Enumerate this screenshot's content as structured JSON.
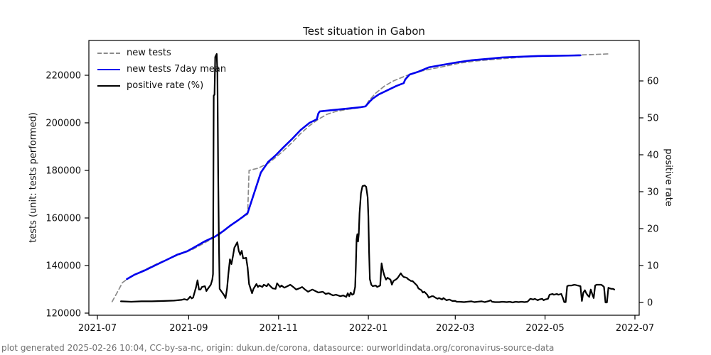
{
  "title": "Test situation in Gabon",
  "footer": "plot generated 2025-02-26 10:04, CC-by-sa-nc, origin: dukun.de/corona, datasource: ourworldindata.org/coronavirus-source-data",
  "legend": [
    {
      "label": "new tests",
      "color": "#8a8a8a",
      "style": "dashed"
    },
    {
      "label": "new tests 7day mean",
      "color": "#0000ee",
      "style": "solid"
    },
    {
      "label": "positive rate (%)",
      "color": "#000000",
      "style": "solid"
    }
  ],
  "chart_data": {
    "type": "line",
    "title": "Test situation in Gabon",
    "ylabel_left": "tests (unit: tests performed)",
    "ylabel_right": "positive rate",
    "x_unit": "days since 2021-07-01",
    "x_tick_days": [
      0,
      62,
      123,
      184,
      243,
      304,
      365
    ],
    "x_tick_labels": [
      "2021-07",
      "2021-09",
      "2021-11",
      "2022-01",
      "2022-03",
      "2022-05",
      "2022-07"
    ],
    "y_left_ticks": [
      120000,
      140000,
      160000,
      180000,
      200000,
      220000
    ],
    "y_right_ticks": [
      0,
      10,
      20,
      30,
      40,
      50,
      60
    ],
    "ylim_left": [
      119100,
      234600
    ],
    "ylim_right": [
      -3.5,
      71
    ],
    "grid": false,
    "legend_position": "upper left",
    "series": [
      {
        "name": "new tests",
        "color": "#8a8a8a",
        "dash": true,
        "axis": "left",
        "points": [
          [
            10,
            124800
          ],
          [
            14,
            129300
          ],
          [
            17,
            132800
          ],
          [
            21,
            134600
          ],
          [
            30,
            137600
          ],
          [
            42,
            141200
          ],
          [
            54,
            144200
          ],
          [
            64,
            146600
          ],
          [
            73,
            149600
          ],
          [
            83,
            153100
          ],
          [
            93,
            157900
          ],
          [
            101,
            161200
          ],
          [
            102,
            161500
          ],
          [
            103,
            180000
          ],
          [
            109,
            180900
          ],
          [
            116,
            183000
          ],
          [
            121,
            185400
          ],
          [
            126,
            188100
          ],
          [
            132,
            191600
          ],
          [
            138,
            195500
          ],
          [
            144,
            198800
          ],
          [
            150,
            201500
          ],
          [
            156,
            203600
          ],
          [
            162,
            204800
          ],
          [
            170,
            205700
          ],
          [
            177,
            206300
          ],
          [
            182,
            206900
          ],
          [
            184,
            209000
          ],
          [
            189,
            212500
          ],
          [
            195,
            215500
          ],
          [
            201,
            217600
          ],
          [
            208,
            219400
          ],
          [
            213,
            220600
          ],
          [
            220,
            221800
          ],
          [
            227,
            222700
          ],
          [
            237,
            223900
          ],
          [
            246,
            225100
          ],
          [
            257,
            226000
          ],
          [
            268,
            226600
          ],
          [
            280,
            227200
          ],
          [
            292,
            227800
          ],
          [
            306,
            228100
          ],
          [
            321,
            228400
          ],
          [
            335,
            228700
          ],
          [
            348,
            229000
          ]
        ]
      },
      {
        "name": "new tests 7day mean",
        "color": "#0000ee",
        "dash": false,
        "axis": "left",
        "points": [
          [
            20,
            134300
          ],
          [
            25,
            136100
          ],
          [
            32,
            137900
          ],
          [
            40,
            140300
          ],
          [
            48,
            142700
          ],
          [
            54,
            144500
          ],
          [
            61,
            146000
          ],
          [
            67,
            148100
          ],
          [
            73,
            150200
          ],
          [
            80,
            152200
          ],
          [
            85,
            154300
          ],
          [
            90,
            156700
          ],
          [
            95,
            158800
          ],
          [
            99,
            160600
          ],
          [
            102,
            162100
          ],
          [
            111,
            179100
          ],
          [
            116,
            183600
          ],
          [
            121,
            186300
          ],
          [
            126,
            189500
          ],
          [
            132,
            193100
          ],
          [
            138,
            197000
          ],
          [
            144,
            200000
          ],
          [
            149,
            201500
          ],
          [
            150,
            203900
          ],
          [
            151,
            204800
          ],
          [
            160,
            205400
          ],
          [
            170,
            206000
          ],
          [
            179,
            206600
          ],
          [
            182,
            206900
          ],
          [
            185,
            209000
          ],
          [
            187,
            210200
          ],
          [
            191,
            211900
          ],
          [
            197,
            213700
          ],
          [
            203,
            215500
          ],
          [
            208,
            216700
          ],
          [
            209,
            218200
          ],
          [
            212,
            220300
          ],
          [
            218,
            221500
          ],
          [
            225,
            223300
          ],
          [
            233,
            224200
          ],
          [
            244,
            225400
          ],
          [
            254,
            226300
          ],
          [
            265,
            226900
          ],
          [
            275,
            227500
          ],
          [
            287,
            227800
          ],
          [
            299,
            228100
          ],
          [
            314,
            228200
          ],
          [
            328,
            228400
          ]
        ]
      },
      {
        "name": "positive rate (%)",
        "color": "#000000",
        "dash": false,
        "axis": "right",
        "points": [
          [
            16,
            0.3
          ],
          [
            23,
            0.2
          ],
          [
            30,
            0.3
          ],
          [
            37,
            0.3
          ],
          [
            45,
            0.4
          ],
          [
            52,
            0.5
          ],
          [
            57,
            0.7
          ],
          [
            59,
            0.9
          ],
          [
            61,
            0.7
          ],
          [
            62,
            1.1
          ],
          [
            63,
            1.6
          ],
          [
            64,
            1.1
          ],
          [
            65,
            1.3
          ],
          [
            67,
            4.2
          ],
          [
            68,
            6.0
          ],
          [
            69,
            3.5
          ],
          [
            70,
            3.5
          ],
          [
            71,
            4.2
          ],
          [
            73,
            4.4
          ],
          [
            74,
            3.1
          ],
          [
            75,
            3.7
          ],
          [
            77,
            4.8
          ],
          [
            78,
            6.2
          ],
          [
            78.5,
            7.7
          ],
          [
            79,
            56.0
          ],
          [
            79.5,
            56.3
          ],
          [
            80,
            66.5
          ],
          [
            81,
            67.3
          ],
          [
            81.5,
            62
          ],
          [
            82,
            36
          ],
          [
            82.5,
            16.5
          ],
          [
            83,
            3.7
          ],
          [
            84,
            3.1
          ],
          [
            86,
            2.0
          ],
          [
            87,
            1.2
          ],
          [
            88,
            3.7
          ],
          [
            89,
            7.9
          ],
          [
            90,
            11.7
          ],
          [
            91,
            10.4
          ],
          [
            92,
            12.5
          ],
          [
            93,
            14.8
          ],
          [
            95,
            16.3
          ],
          [
            96,
            14.0
          ],
          [
            97,
            12.9
          ],
          [
            98,
            14.0
          ],
          [
            99,
            11.9
          ],
          [
            101,
            12.1
          ],
          [
            102,
            9.4
          ],
          [
            103,
            5.0
          ],
          [
            105,
            2.5
          ],
          [
            106,
            3.7
          ],
          [
            108,
            5.0
          ],
          [
            109,
            4.2
          ],
          [
            110,
            4.6
          ],
          [
            112,
            4.2
          ],
          [
            113,
            4.8
          ],
          [
            115,
            4.4
          ],
          [
            116,
            5.0
          ],
          [
            118,
            4.2
          ],
          [
            119,
            3.8
          ],
          [
            121,
            3.7
          ],
          [
            122,
            5.2
          ],
          [
            124,
            4.2
          ],
          [
            125,
            4.6
          ],
          [
            127,
            4.0
          ],
          [
            129,
            4.4
          ],
          [
            131,
            4.8
          ],
          [
            133,
            4.2
          ],
          [
            135,
            3.5
          ],
          [
            137,
            3.8
          ],
          [
            139,
            4.2
          ],
          [
            141,
            3.5
          ],
          [
            143,
            2.9
          ],
          [
            145,
            3.3
          ],
          [
            146,
            3.5
          ],
          [
            148,
            3.1
          ],
          [
            150,
            2.7
          ],
          [
            153,
            2.9
          ],
          [
            155,
            2.3
          ],
          [
            157,
            2.5
          ],
          [
            160,
            1.9
          ],
          [
            162,
            2.1
          ],
          [
            165,
            1.7
          ],
          [
            167,
            1.9
          ],
          [
            169,
            1.5
          ],
          [
            170,
            2.5
          ],
          [
            171,
            1.7
          ],
          [
            172,
            2.7
          ],
          [
            173,
            2.1
          ],
          [
            174,
            2.3
          ],
          [
            175,
            4.2
          ],
          [
            175.5,
            9.8
          ],
          [
            176,
            17.1
          ],
          [
            176.5,
            18.5
          ],
          [
            177,
            16.5
          ],
          [
            177.5,
            18.5
          ],
          [
            178,
            24.2
          ],
          [
            179,
            29.6
          ],
          [
            180,
            31.5
          ],
          [
            181.5,
            31.7
          ],
          [
            182.5,
            31.3
          ],
          [
            183.5,
            28.5
          ],
          [
            184,
            23.3
          ],
          [
            184.5,
            13.7
          ],
          [
            185,
            6.3
          ],
          [
            186,
            4.8
          ],
          [
            187,
            4.4
          ],
          [
            189,
            4.6
          ],
          [
            190,
            4.2
          ],
          [
            192,
            4.6
          ],
          [
            193,
            10.6
          ],
          [
            194,
            8.5
          ],
          [
            195,
            7.1
          ],
          [
            196,
            6.2
          ],
          [
            197,
            6.7
          ],
          [
            199,
            6.2
          ],
          [
            200,
            4.8
          ],
          [
            201,
            5.8
          ],
          [
            203,
            6.3
          ],
          [
            204,
            6.7
          ],
          [
            206,
            7.9
          ],
          [
            207,
            7.3
          ],
          [
            208,
            6.9
          ],
          [
            210,
            6.7
          ],
          [
            211,
            6.3
          ],
          [
            213,
            5.8
          ],
          [
            214,
            5.8
          ],
          [
            216,
            5.0
          ],
          [
            217,
            4.6
          ],
          [
            218,
            3.8
          ],
          [
            220,
            3.3
          ],
          [
            221,
            2.7
          ],
          [
            222,
            2.9
          ],
          [
            224,
            2.1
          ],
          [
            225,
            1.3
          ],
          [
            227,
            1.7
          ],
          [
            228,
            1.7
          ],
          [
            230,
            1.2
          ],
          [
            231,
            1.0
          ],
          [
            232,
            1.2
          ],
          [
            234,
            0.8
          ],
          [
            235,
            1.2
          ],
          [
            237,
            0.6
          ],
          [
            239,
            0.8
          ],
          [
            241,
            0.4
          ],
          [
            243,
            0.4
          ],
          [
            244,
            0.2
          ],
          [
            246,
            0.2
          ],
          [
            249,
            0.1
          ],
          [
            251,
            0.2
          ],
          [
            254,
            0.3
          ],
          [
            256,
            0.1
          ],
          [
            258,
            0.2
          ],
          [
            261,
            0.3
          ],
          [
            263,
            0.1
          ],
          [
            266,
            0.4
          ],
          [
            267,
            0.6
          ],
          [
            268,
            0.2
          ],
          [
            270,
            0.1
          ],
          [
            273,
            0.1
          ],
          [
            275,
            0.2
          ],
          [
            278,
            0.1
          ],
          [
            280,
            0.2
          ],
          [
            282,
            0
          ],
          [
            284,
            0.2
          ],
          [
            286,
            0.1
          ],
          [
            288,
            0.2
          ],
          [
            290,
            0.1
          ],
          [
            292,
            0.2
          ],
          [
            293,
            0.6
          ],
          [
            294,
            1.0
          ],
          [
            296,
            0.8
          ],
          [
            297,
            1.0
          ],
          [
            299,
            0.6
          ],
          [
            300,
            0.8
          ],
          [
            302,
            1.0
          ],
          [
            303,
            0.6
          ],
          [
            304,
            0.8
          ],
          [
            306,
            1.0
          ],
          [
            307,
            2.1
          ],
          [
            309,
            2.3
          ],
          [
            310,
            2.1
          ],
          [
            312,
            2.3
          ],
          [
            313,
            2.1
          ],
          [
            315,
            2.3
          ],
          [
            316,
            1.3
          ],
          [
            317,
            0.1
          ],
          [
            318,
            0.1
          ],
          [
            319,
            4.4
          ],
          [
            320,
            4.6
          ],
          [
            322,
            4.6
          ],
          [
            324,
            4.8
          ],
          [
            326,
            4.6
          ],
          [
            328,
            4.4
          ],
          [
            329,
            0.4
          ],
          [
            330,
            2.7
          ],
          [
            331,
            3.3
          ],
          [
            332,
            2.5
          ],
          [
            333,
            1.9
          ],
          [
            334,
            1.5
          ],
          [
            335,
            3.5
          ],
          [
            336,
            2.3
          ],
          [
            337,
            1.2
          ],
          [
            338,
            4.6
          ],
          [
            339,
            4.8
          ],
          [
            341,
            4.8
          ],
          [
            342,
            4.8
          ],
          [
            343,
            4.6
          ],
          [
            344,
            4.2
          ],
          [
            345,
            0
          ],
          [
            346,
            0
          ],
          [
            347,
            4.0
          ],
          [
            348,
            3.8
          ],
          [
            349,
            3.7
          ],
          [
            350,
            3.7
          ],
          [
            351,
            3.5
          ]
        ]
      }
    ]
  }
}
